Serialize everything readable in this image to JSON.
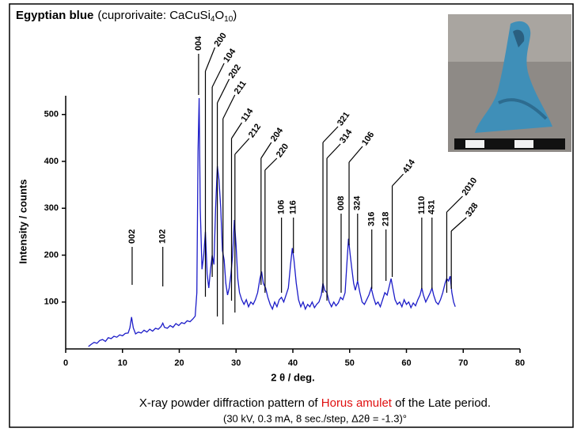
{
  "chart_data": {
    "type": "line",
    "title": {
      "main": "Egyptian blue",
      "formula": [
        "(cuprorivaite: CaCuSi",
        "4",
        "O",
        "10",
        ")"
      ]
    },
    "xlabel": "2 θ / deg.",
    "ylabel": "Intensity / counts",
    "caption": {
      "line1": [
        "X-ray powder diffraction pattern of ",
        "Horus amulet",
        " of the Late period."
      ],
      "line2": "(30 kV, 0.3 mA, 8 sec./step, Δ2θ = -1.3)°"
    },
    "xlim": [
      0,
      80
    ],
    "ylim": [
      0,
      540
    ],
    "xticks": [
      0,
      10,
      20,
      30,
      40,
      50,
      60,
      70,
      80
    ],
    "yticks": [
      100,
      200,
      300,
      400,
      500
    ],
    "x": [
      4,
      4.5,
      5,
      5.5,
      6,
      6.5,
      7,
      7.5,
      8,
      8.5,
      9,
      9.5,
      10,
      10.5,
      11,
      11.3,
      11.6,
      11.9,
      12.3,
      12.8,
      13.3,
      13.8,
      14.3,
      14.8,
      15.3,
      15.8,
      16.3,
      16.8,
      17.1,
      17.4,
      17.9,
      18.4,
      18.9,
      19.4,
      19.9,
      20.4,
      20.9,
      21.4,
      21.9,
      22.4,
      22.8,
      23.1,
      23.3,
      23.5,
      23.7,
      24.0,
      24.3,
      24.6,
      24.9,
      25.2,
      25.5,
      25.8,
      26.1,
      26.4,
      26.7,
      27.0,
      27.3,
      27.6,
      27.9,
      28.2,
      28.5,
      28.8,
      29.1,
      29.4,
      29.7,
      30.0,
      30.3,
      30.6,
      31.0,
      31.4,
      31.8,
      32.2,
      32.6,
      33.0,
      33.4,
      33.8,
      34.2,
      34.5,
      34.8,
      35.2,
      35.6,
      36.0,
      36.4,
      36.8,
      37.2,
      37.6,
      38.0,
      38.4,
      38.8,
      39.2,
      39.6,
      39.9,
      40.2,
      40.6,
      41.0,
      41.4,
      41.8,
      42.2,
      42.6,
      43.0,
      43.4,
      43.8,
      44.2,
      44.6,
      45.0,
      45.3,
      45.6,
      46.0,
      46.4,
      46.8,
      47.2,
      47.6,
      48.0,
      48.4,
      48.8,
      49.2,
      49.5,
      49.8,
      50.1,
      50.4,
      50.7,
      51.0,
      51.4,
      51.8,
      52.2,
      52.6,
      53.0,
      53.4,
      53.8,
      54.2,
      54.6,
      55.0,
      55.4,
      55.8,
      56.2,
      56.6,
      57.0,
      57.3,
      57.6,
      58.0,
      58.4,
      58.8,
      59.2,
      59.6,
      60.0,
      60.4,
      60.8,
      61.2,
      61.6,
      62.0,
      62.4,
      62.7,
      63.0,
      63.4,
      63.8,
      64.2,
      64.5,
      64.8,
      65.2,
      65.6,
      66.0,
      66.4,
      66.8,
      67.1,
      67.4,
      67.7,
      68.0,
      68.3,
      68.6
    ],
    "series": [
      {
        "color": "#1c1cc8",
        "values": [
          5,
          10,
          14,
          12,
          18,
          20,
          16,
          24,
          22,
          27,
          25,
          30,
          28,
          33,
          34,
          45,
          68,
          45,
          32,
          36,
          34,
          40,
          36,
          42,
          38,
          44,
          42,
          48,
          55,
          46,
          44,
          50,
          46,
          54,
          50,
          56,
          54,
          60,
          58,
          64,
          70,
          120,
          420,
          535,
          300,
          170,
          200,
          250,
          160,
          130,
          170,
          200,
          180,
          300,
          390,
          360,
          300,
          210,
          190,
          140,
          115,
          130,
          160,
          200,
          275,
          220,
          150,
          120,
          105,
          95,
          105,
          90,
          100,
          95,
          105,
          120,
          150,
          165,
          140,
          130,
          110,
          95,
          85,
          100,
          90,
          105,
          110,
          100,
          115,
          130,
          180,
          215,
          190,
          140,
          105,
          90,
          100,
          85,
          95,
          90,
          100,
          88,
          95,
          100,
          115,
          140,
          125,
          120,
          100,
          90,
          100,
          92,
          98,
          110,
          105,
          120,
          180,
          235,
          200,
          170,
          140,
          125,
          145,
          120,
          100,
          95,
          105,
          115,
          130,
          110,
          95,
          100,
          90,
          105,
          120,
          115,
          135,
          150,
          130,
          105,
          95,
          100,
          90,
          105,
          95,
          100,
          88,
          98,
          92,
          105,
          115,
          130,
          115,
          100,
          110,
          120,
          130,
          115,
          100,
          95,
          105,
          120,
          140,
          150,
          145,
          155,
          120,
          100,
          90
        ]
      }
    ],
    "annotations": [
      {
        "label": "002",
        "x": 11.7
      },
      {
        "label": "102",
        "x": 17.1
      },
      {
        "label": "004",
        "x": 23.4
      },
      {
        "label": "200",
        "x": 24.6
      },
      {
        "label": "104",
        "x": 25.8
      },
      {
        "label": "202",
        "x": 26.7
      },
      {
        "label": "211",
        "x": 27.7
      },
      {
        "label": "114",
        "x": 29.2
      },
      {
        "label": "212",
        "x": 29.8
      },
      {
        "label": "204",
        "x": 34.4
      },
      {
        "label": "220",
        "x": 35.1
      },
      {
        "label": "106",
        "x": 38.0
      },
      {
        "label": "116",
        "x": 40.1
      },
      {
        "label": "321",
        "x": 45.3
      },
      {
        "label": "314",
        "x": 46.0
      },
      {
        "label": "008",
        "x": 48.5
      },
      {
        "label": "106",
        "x": 49.9
      },
      {
        "label": "324",
        "x": 51.4
      },
      {
        "label": "316",
        "x": 53.9
      },
      {
        "label": "218",
        "x": 56.4
      },
      {
        "label": "414",
        "x": 57.5
      },
      {
        "label": "1110",
        "x": 62.7
      },
      {
        "label": "431",
        "x": 64.5
      },
      {
        "label": "2010",
        "x": 67.1
      },
      {
        "label": "328",
        "x": 67.9
      }
    ]
  }
}
